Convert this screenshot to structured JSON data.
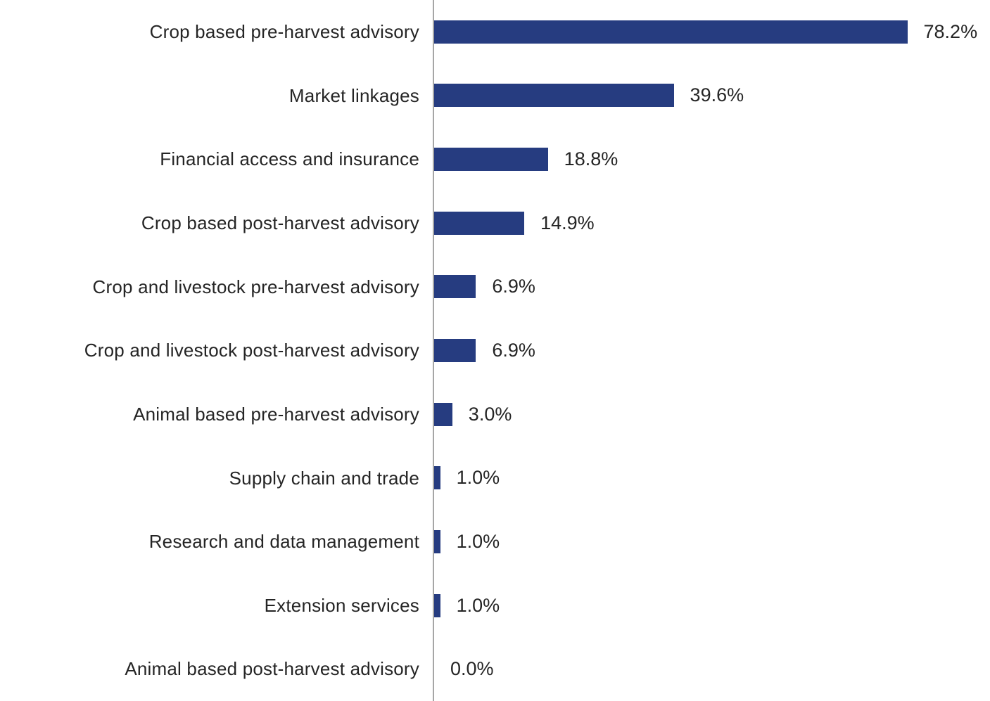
{
  "chart_data": {
    "type": "bar",
    "orientation": "horizontal",
    "title": "",
    "xlabel": "",
    "ylabel": "",
    "categories": [
      "Crop based pre-harvest advisory",
      "Market linkages",
      "Financial access and insurance",
      "Crop based post-harvest advisory",
      "Crop and livestock pre-harvest advisory",
      "Crop and livestock post-harvest advisory",
      "Animal based pre-harvest advisory",
      "Supply chain and trade",
      "Research and data management",
      "Extension services",
      "Animal based post-harvest advisory"
    ],
    "values": [
      78.2,
      39.6,
      18.8,
      14.9,
      6.9,
      6.9,
      3.0,
      1.0,
      1.0,
      1.0,
      0.0
    ],
    "value_labels": [
      "78.2%",
      "39.6%",
      "18.8%",
      "14.9%",
      "6.9%",
      "6.9%",
      "3.0%",
      "1.0%",
      "1.0%",
      "1.0%",
      "0.0%"
    ],
    "xlim": [
      0,
      92
    ],
    "grid": false,
    "legend": false,
    "data_labels": "outside-end",
    "bar_color": "#263c80",
    "axis_line_color": "#a6a6a6",
    "text_color": "#252525",
    "background_color": "#ffffff"
  }
}
